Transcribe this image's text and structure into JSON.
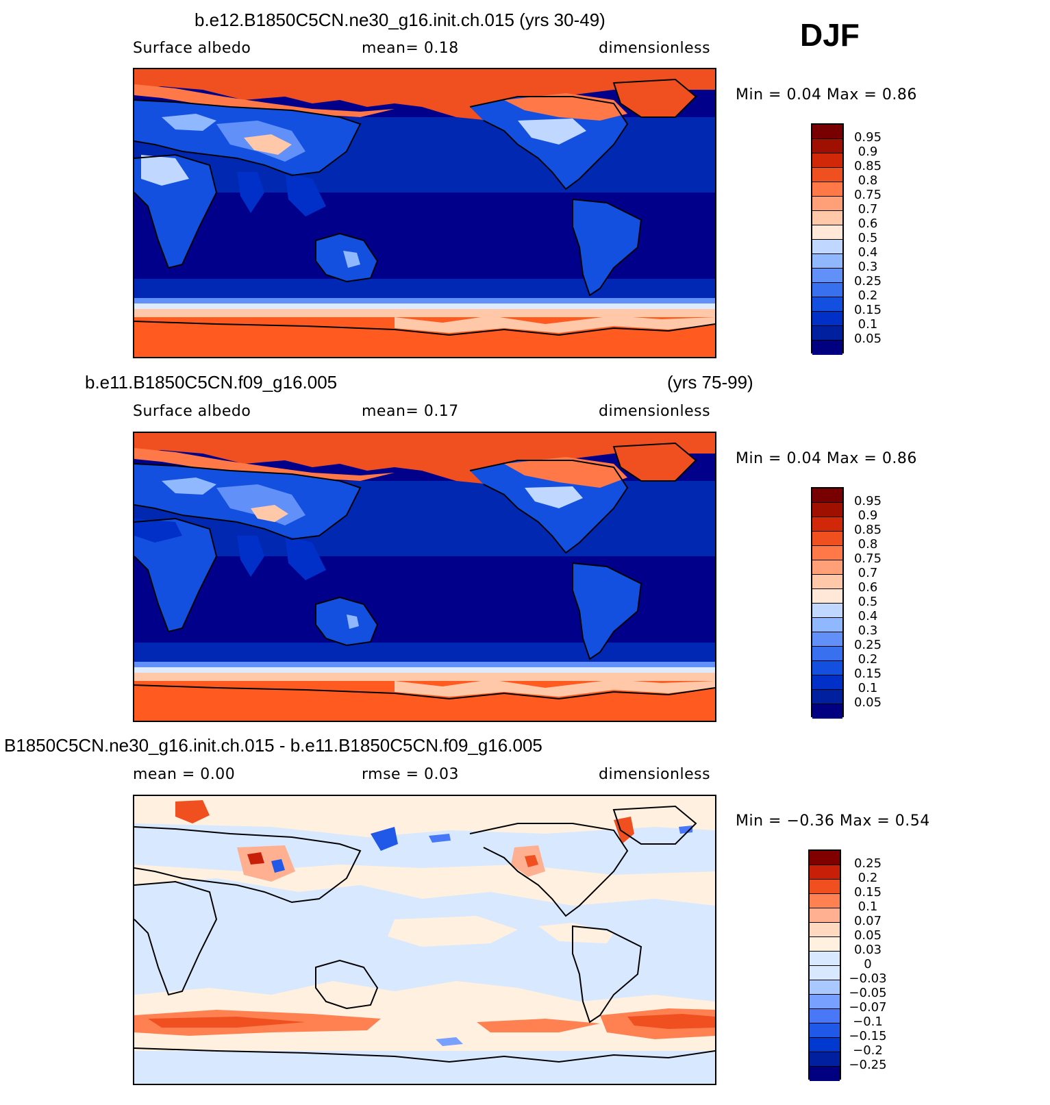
{
  "season": "DJF",
  "palette_main": [
    "#000080",
    "#0020a0",
    "#0030c8",
    "#1450e0",
    "#3870f0",
    "#6090f8",
    "#90b8ff",
    "#c0d8ff",
    "#deebff",
    "#ffe8d8",
    "#ffc8a8",
    "#ffa078",
    "#ff7848",
    "#f05020",
    "#d02808",
    "#a01000",
    "#780000"
  ],
  "palette_diff": [
    "#000080",
    "#0020a0",
    "#0038d0",
    "#2058e8",
    "#4878f8",
    "#78a0ff",
    "#a8c8ff",
    "#d8e8ff",
    "#fff0e0",
    "#ffd8c0",
    "#ffb090",
    "#ff8050",
    "#f05020",
    "#c82008",
    "#800000"
  ],
  "panels": [
    {
      "title": "b.e12.B1850C5CN.ne30_g16.init.ch.015 (yrs 30-49)",
      "sub_left": "Surface  albedo",
      "sub_mid": "mean=     0.18",
      "sub_right": "dimensionless",
      "minmax": "Min  =     0.04  Max  =      0.86",
      "levels": [
        "0.95",
        "0.9",
        "0.85",
        "0.8",
        "0.75",
        "0.7",
        "0.6",
        "0.5",
        "0.4",
        "0.3",
        "0.25",
        "0.2",
        "0.15",
        "0.1",
        "0.05"
      ]
    },
    {
      "title": "b.e11.B1850C5CN.f09_g16.005",
      "title_right": "(yrs 75-99)",
      "sub_left": "Surface  albedo",
      "sub_mid": "mean=     0.17",
      "sub_right": "dimensionless",
      "minmax": "Min  =     0.04  Max  =      0.86",
      "levels": [
        "0.95",
        "0.9",
        "0.85",
        "0.8",
        "0.75",
        "0.7",
        "0.6",
        "0.5",
        "0.4",
        "0.3",
        "0.25",
        "0.2",
        "0.15",
        "0.1",
        "0.05"
      ]
    },
    {
      "title": "B1850C5CN.ne30_g16.init.ch.015 - b.e11.B1850C5CN.f09_g16.005",
      "sub_left": "mean  =      0.00",
      "sub_mid": "rmse  =      0.03",
      "sub_right": "dimensionless",
      "minmax": "Min  =   −0.36  Max  =      0.54",
      "levels": [
        "0.25",
        "0.2",
        "0.15",
        "0.1",
        "0.07",
        "0.05",
        "0.03",
        "0",
        "−0.03",
        "−0.05",
        "−0.07",
        "−0.1",
        "−0.15",
        "−0.2",
        "−0.25"
      ]
    }
  ]
}
